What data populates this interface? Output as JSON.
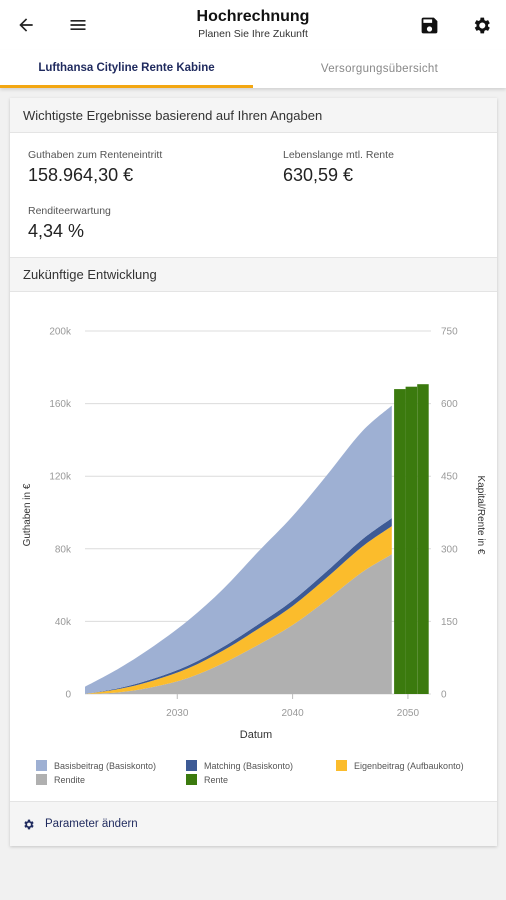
{
  "appbar": {
    "title": "Hochrechnung",
    "subtitle": "Planen Sie Ihre Zukunft",
    "back_icon": "arrow-left-icon",
    "menu_icon": "menu-icon",
    "save_icon": "save-icon",
    "settings_icon": "gear-icon"
  },
  "tabs": [
    {
      "label": "Lufthansa Cityline Rente Kabine",
      "active": true
    },
    {
      "label": "Versorgungsübersicht",
      "active": false
    }
  ],
  "results": {
    "heading": "Wichtigste Ergebnisse basierend auf Ihren Angaben",
    "guthaben_label": "Guthaben zum Renteneintritt",
    "guthaben_value": "158.964,30 €",
    "rente_label": "Lebenslange mtl. Rente",
    "rente_value": "630,59 €",
    "rendite_label": "Renditeerwartung",
    "rendite_value": "4,34 %"
  },
  "development": {
    "heading": "Zukünftige Entwicklung"
  },
  "footer": {
    "label": "Parameter ändern",
    "icon": "gear-icon"
  },
  "colors": {
    "accent": "#f3a712",
    "primary": "#1f2a5e",
    "basisbeitrag": "#9eb0d3",
    "matching": "#3d5a95",
    "eigenbeitrag": "#fbbc2c",
    "rendite": "#b0b0b0",
    "rente": "#3b7a0e"
  },
  "chart_data": {
    "type": "area",
    "xlabel": "Datum",
    "ylabel": "Guthaben in €",
    "y2label": "Kapital/Rente in €",
    "xlim": [
      2022,
      2052
    ],
    "ylim": [
      0,
      200000
    ],
    "y2lim": [
      0,
      750
    ],
    "yticks": [
      0,
      40000,
      80000,
      120000,
      160000,
      200000
    ],
    "ytick_labels": [
      "0",
      "40k",
      "80k",
      "120k",
      "160k",
      "200k"
    ],
    "y2ticks": [
      0,
      150,
      300,
      450,
      600,
      750
    ],
    "y2tick_labels": [
      "0",
      "150",
      "300",
      "450",
      "600",
      "750"
    ],
    "xticks": [
      2030,
      2040,
      2050
    ],
    "xtick_labels": [
      "2030",
      "2040",
      "2050"
    ],
    "grid": true,
    "legend_position": "bottom",
    "x": [
      2022,
      2025,
      2028,
      2031,
      2034,
      2037,
      2040,
      2043,
      2046,
      2048.6
    ],
    "series": [
      {
        "name": "Rendite",
        "kind": "stacked-area",
        "values": [
          0,
          1000,
          4000,
          9000,
          17000,
          27000,
          38000,
          52000,
          67000,
          77000
        ]
      },
      {
        "name": "Eigenbeitrag (Aufbaukonto)",
        "kind": "stacked-area",
        "values": [
          0,
          1800,
          3600,
          5300,
          7000,
          8800,
          10500,
          12300,
          14000,
          15500
        ]
      },
      {
        "name": "Matching (Basiskonto)",
        "kind": "stacked-area",
        "values": [
          0,
          500,
          1000,
          1500,
          2000,
          2500,
          3000,
          3500,
          4000,
          4400
        ]
      },
      {
        "name": "Basisbeitrag (Basiskonto)",
        "kind": "stacked-area",
        "values": [
          4000,
          11000,
          18000,
          25000,
          32000,
          40000,
          46500,
          53000,
          59500,
          62000
        ]
      },
      {
        "name": "Rente",
        "kind": "bar",
        "axis": "right",
        "x": [
          2049.3,
          2050.3,
          2051.3
        ],
        "values": [
          630,
          635,
          640
        ]
      }
    ]
  }
}
